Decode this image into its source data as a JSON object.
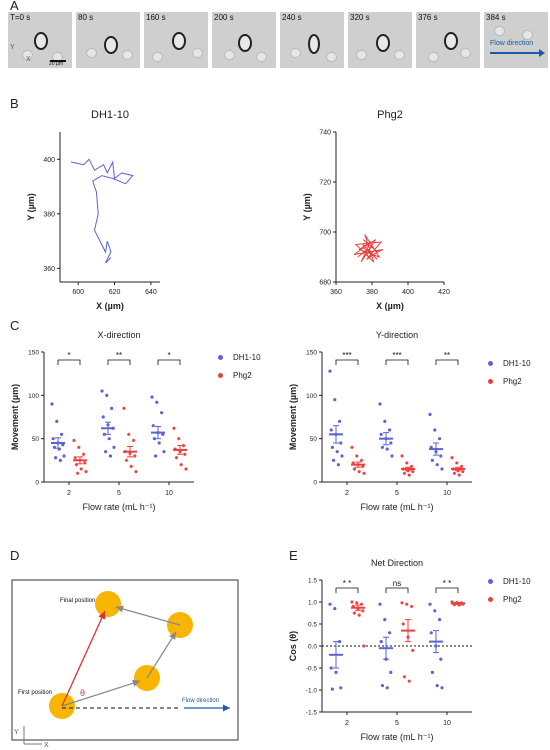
{
  "panels": {
    "a": "A",
    "b": "B",
    "c": "C",
    "d": "D",
    "e": "E"
  },
  "panel_a": {
    "frames": [
      "T=0 s",
      "80 s",
      "160 s",
      "200 s",
      "240 s",
      "320 s",
      "376 s",
      "384 s"
    ],
    "scale_bar": "20 µm",
    "axis_y": "Y",
    "axis_x": "X",
    "flow_label": "Flow direction"
  },
  "colors": {
    "dh": "#5b63d6",
    "phg": "#e8413f",
    "gray": "#888888",
    "circle": "#f7b500"
  },
  "panel_d": {
    "final_label": "Final position",
    "first_label": "First position",
    "theta": "θ",
    "flow_label": "Flow direction",
    "axis_y": "Y",
    "axis_x": "X"
  },
  "legend": {
    "dh": "DH1-10",
    "phg": "Phg2"
  },
  "chart_data": [
    {
      "type": "line",
      "title": "DH1-10",
      "xlabel": "X (µm)",
      "ylabel": "Y (µm)",
      "xlim": [
        590,
        645
      ],
      "ylim": [
        355,
        410
      ],
      "xticks": [
        "600",
        "620",
        "640"
      ],
      "yticks": [
        "360",
        "380",
        "400"
      ],
      "series": [
        {
          "name": "DH1-10",
          "points": [
            [
              596,
              399
            ],
            [
              603,
              398
            ],
            [
              606,
              400
            ],
            [
              609,
              396
            ],
            [
              614,
              398
            ],
            [
              616,
              395
            ],
            [
              619,
              399
            ],
            [
              620,
              393
            ],
            [
              624,
              395
            ],
            [
              630,
              394
            ],
            [
              626,
              391
            ],
            [
              619,
              393
            ],
            [
              613,
              394
            ],
            [
              608,
              392
            ],
            [
              610,
              388
            ],
            [
              611,
              380
            ],
            [
              609,
              374
            ],
            [
              612,
              370
            ],
            [
              615,
              366
            ],
            [
              616,
              370
            ],
            [
              618,
              366
            ],
            [
              615,
              362
            ],
            [
              618,
              364
            ]
          ]
        }
      ]
    },
    {
      "type": "line",
      "title": "Phg2",
      "xlabel": "X (µm)",
      "ylabel": "Y (µm)",
      "xlim": [
        360,
        420
      ],
      "ylim": [
        680,
        740
      ],
      "xticks": [
        "360",
        "380",
        "400",
        "420"
      ],
      "yticks": [
        "680",
        "700",
        "720",
        "740"
      ],
      "series": [
        {
          "name": "Phg2",
          "points": [
            [
              372,
              690
            ],
            [
              380,
              694
            ],
            [
              375,
              697
            ],
            [
              383,
              692
            ],
            [
              377,
              689
            ],
            [
              385,
              696
            ],
            [
              371,
              695
            ],
            [
              381,
              688
            ],
            [
              376,
              699
            ],
            [
              384,
              690
            ],
            [
              373,
              693
            ],
            [
              379,
              696
            ],
            [
              374,
              688
            ],
            [
              382,
              697
            ],
            [
              370,
              691
            ],
            [
              386,
              693
            ],
            [
              378,
              690
            ],
            [
              375,
              695
            ],
            [
              383,
              689
            ],
            [
              377,
              693
            ]
          ]
        }
      ]
    },
    {
      "type": "scatter",
      "title": "X-direction",
      "xlabel": "Flow rate (mL h⁻¹)",
      "ylabel": "Movement (µm)",
      "ylim": [
        0,
        150
      ],
      "yticks": [
        "0",
        "50",
        "100",
        "150"
      ],
      "categories": [
        "2",
        "5",
        "10"
      ],
      "significance": [
        "*",
        "**",
        "*"
      ],
      "series": [
        {
          "name": "DH1-10",
          "mean": [
            45,
            62,
            57
          ],
          "sem": [
            6,
            7,
            7
          ],
          "values": [
            [
              90,
              70,
              55,
              50,
              45,
              43,
              40,
              38,
              30,
              28,
              25
            ],
            [
              105,
              100,
              85,
              75,
              66,
              62,
              55,
              50,
              40,
              35,
              30
            ],
            [
              98,
              92,
              80,
              65,
              57,
              55,
              50,
              45,
              35,
              30
            ]
          ]
        },
        {
          "name": "Phg2",
          "mean": [
            25,
            35,
            37
          ],
          "sem": [
            4,
            6,
            5
          ],
          "values": [
            [
              48,
              40,
              32,
              28,
              25,
              22,
              20,
              15,
              12,
              10
            ],
            [
              85,
              55,
              48,
              35,
              33,
              30,
              25,
              18,
              12
            ],
            [
              62,
              50,
              42,
              38,
              35,
              32,
              28,
              20,
              15
            ]
          ]
        }
      ]
    },
    {
      "type": "scatter",
      "title": "Y-direction",
      "xlabel": "Flow rate (mL h⁻¹)",
      "ylabel": "Movement (µm)",
      "ylim": [
        0,
        150
      ],
      "yticks": [
        "0",
        "50",
        "100",
        "150"
      ],
      "categories": [
        "2",
        "5",
        "10"
      ],
      "significance": [
        "***",
        "***",
        "**"
      ],
      "series": [
        {
          "name": "DH1-10",
          "mean": [
            55,
            50,
            38
          ],
          "sem": [
            10,
            7,
            7
          ],
          "values": [
            [
              128,
              95,
              70,
              60,
              55,
              45,
              40,
              35,
              30,
              25,
              20
            ],
            [
              90,
              70,
              60,
              55,
              50,
              45,
              40,
              38,
              30
            ],
            [
              78,
              60,
              50,
              40,
              35,
              30,
              25,
              20,
              15
            ]
          ]
        },
        {
          "name": "Phg2",
          "mean": [
            20,
            15,
            15
          ],
          "sem": [
            3,
            2,
            2
          ],
          "values": [
            [
              40,
              30,
              25,
              22,
              20,
              18,
              15,
              12,
              10
            ],
            [
              30,
              22,
              18,
              15,
              13,
              12,
              10,
              8
            ],
            [
              28,
              22,
              18,
              15,
              13,
              12,
              10,
              8
            ]
          ]
        }
      ]
    },
    {
      "type": "scatter",
      "title": "Net Direction",
      "xlabel": "Flow rate (mL h⁻¹)",
      "ylabel": "Cos (θ)",
      "ylim": [
        -1.5,
        1.5
      ],
      "yticks": [
        "-1.5",
        "-1.0",
        "-0.5",
        "0.0",
        "0.5",
        "1.0",
        "1.5"
      ],
      "categories": [
        "2",
        "5",
        "10"
      ],
      "significance": [
        "* *",
        "ns",
        "* *"
      ],
      "series": [
        {
          "name": "DH1-10",
          "mean": [
            -0.2,
            -0.05,
            0.1
          ],
          "sem": [
            0.3,
            0.25,
            0.25
          ],
          "values": [
            [
              0.95,
              0.85,
              0.1,
              -0.5,
              -0.6,
              -0.95,
              -0.98
            ],
            [
              0.95,
              0.6,
              0.3,
              0.1,
              -0.3,
              -0.6,
              -0.9,
              -0.95
            ],
            [
              0.95,
              0.8,
              0.6,
              0.3,
              0.0,
              -0.3,
              -0.6,
              -0.9,
              -0.95
            ]
          ]
        },
        {
          "name": "Phg2",
          "mean": [
            0.87,
            0.35,
            0.97
          ],
          "sem": [
            0.06,
            0.25,
            0.02
          ],
          "values": [
            [
              1.0,
              0.98,
              0.95,
              0.9,
              0.85,
              0.8,
              0.75,
              0.7,
              0.0
            ],
            [
              0.98,
              0.95,
              0.9,
              0.5,
              0.2,
              -0.1,
              -0.7,
              -0.8
            ],
            [
              1.0,
              0.99,
              0.98,
              0.97,
              0.96,
              0.95,
              0.94,
              0.93
            ]
          ]
        }
      ]
    }
  ]
}
